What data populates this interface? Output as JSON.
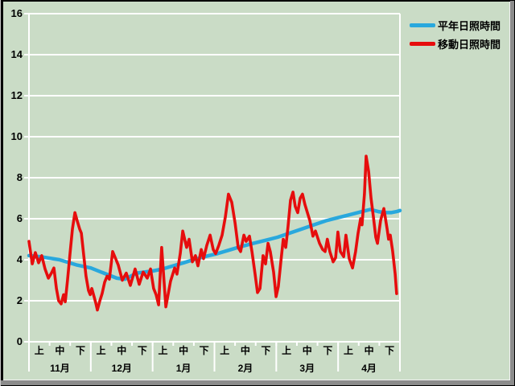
{
  "colors": {
    "background": "#cadcc6",
    "grid": "#ffffff",
    "text": "#000000",
    "frame_dark": "#000000",
    "frame_gray": "#8c8c8c",
    "series_normal": "#29a8dd",
    "series_moving": "#e60d0d"
  },
  "legend": {
    "position": "top-right"
  },
  "chart_data": {
    "type": "line",
    "title": "",
    "xlabel": "",
    "ylabel": "",
    "ylim": [
      0,
      16
    ],
    "yticks": [
      0,
      2,
      4,
      6,
      8,
      10,
      12,
      14,
      16
    ],
    "grid": true,
    "x_axis": {
      "months": [
        "11月",
        "12月",
        "1月",
        "2月",
        "3月",
        "4月"
      ],
      "periods": [
        "上",
        "中",
        "下"
      ],
      "days_total": 180
    },
    "series": [
      {
        "name": "平年日照時間",
        "color": "#29a8dd",
        "points": [
          [
            0,
            4.2
          ],
          [
            5.5,
            4.15
          ],
          [
            14.8,
            4.0
          ],
          [
            23,
            3.75
          ],
          [
            30,
            3.6
          ],
          [
            35,
            3.4
          ],
          [
            42.6,
            3.1
          ],
          [
            46.5,
            3.05
          ],
          [
            52.3,
            3.35
          ],
          [
            60,
            3.45
          ],
          [
            64.8,
            3.55
          ],
          [
            69.9,
            3.7
          ],
          [
            75,
            3.85
          ],
          [
            79.7,
            4.0
          ],
          [
            85.1,
            4.15
          ],
          [
            91.4,
            4.3
          ],
          [
            98,
            4.5
          ],
          [
            103.1,
            4.65
          ],
          [
            108.9,
            4.8
          ],
          [
            114.8,
            4.95
          ],
          [
            120.6,
            5.1
          ],
          [
            126.5,
            5.3
          ],
          [
            132.4,
            5.5
          ],
          [
            138.2,
            5.7
          ],
          [
            144.1,
            5.9
          ],
          [
            149.9,
            6.05
          ],
          [
            155.8,
            6.2
          ],
          [
            161.6,
            6.35
          ],
          [
            165.6,
            6.45
          ],
          [
            169.5,
            6.35
          ],
          [
            172.6,
            6.3
          ],
          [
            175.7,
            6.3
          ],
          [
            178.4,
            6.35
          ],
          [
            180,
            6.4
          ]
        ]
      },
      {
        "name": "移動日照時間",
        "color": "#e60d0d",
        "points": [
          [
            0,
            4.9
          ],
          [
            1.6,
            3.8
          ],
          [
            3.1,
            4.35
          ],
          [
            4.7,
            3.85
          ],
          [
            6.2,
            4.2
          ],
          [
            7.8,
            3.55
          ],
          [
            9.4,
            3.1
          ],
          [
            10.9,
            3.35
          ],
          [
            12.1,
            3.6
          ],
          [
            13.3,
            2.6
          ],
          [
            14.4,
            2.0
          ],
          [
            15.6,
            1.85
          ],
          [
            16.8,
            2.3
          ],
          [
            17.6,
            1.95
          ],
          [
            18.7,
            3.0
          ],
          [
            19.9,
            4.3
          ],
          [
            21.1,
            5.5
          ],
          [
            22.3,
            6.3
          ],
          [
            23.4,
            5.9
          ],
          [
            24.6,
            5.5
          ],
          [
            25.4,
            5.3
          ],
          [
            26.6,
            4.2
          ],
          [
            27.7,
            3.2
          ],
          [
            28.9,
            2.5
          ],
          [
            29.7,
            2.3
          ],
          [
            30.5,
            2.6
          ],
          [
            31.6,
            2.2
          ],
          [
            32.4,
            1.9
          ],
          [
            33.2,
            1.55
          ],
          [
            34.4,
            2.0
          ],
          [
            35.5,
            2.35
          ],
          [
            36.7,
            2.9
          ],
          [
            37.9,
            3.2
          ],
          [
            39.0,
            3.05
          ],
          [
            39.8,
            3.7
          ],
          [
            40.6,
            4.4
          ],
          [
            43.3,
            3.75
          ],
          [
            45.3,
            3.0
          ],
          [
            47.2,
            3.35
          ],
          [
            49.2,
            2.75
          ],
          [
            51.5,
            3.55
          ],
          [
            53.5,
            2.8
          ],
          [
            55.4,
            3.4
          ],
          [
            57.4,
            3.1
          ],
          [
            59.0,
            3.55
          ],
          [
            60.5,
            2.6
          ],
          [
            61.7,
            2.3
          ],
          [
            62.9,
            1.8
          ],
          [
            64.4,
            4.6
          ],
          [
            66.4,
            1.7
          ],
          [
            68.7,
            2.95
          ],
          [
            70.7,
            3.6
          ],
          [
            71.8,
            3.3
          ],
          [
            73.4,
            4.3
          ],
          [
            74.6,
            5.4
          ],
          [
            76.5,
            4.6
          ],
          [
            77.7,
            5.0
          ],
          [
            79.3,
            3.9
          ],
          [
            80.8,
            4.2
          ],
          [
            82.0,
            3.7
          ],
          [
            83.6,
            4.5
          ],
          [
            84.7,
            4.05
          ],
          [
            86.3,
            4.7
          ],
          [
            87.9,
            5.2
          ],
          [
            89.4,
            4.5
          ],
          [
            90.6,
            4.3
          ],
          [
            92.1,
            4.7
          ],
          [
            93.7,
            5.2
          ],
          [
            95.3,
            6.1
          ],
          [
            96.8,
            7.2
          ],
          [
            98.4,
            6.8
          ],
          [
            100.0,
            5.8
          ],
          [
            101.5,
            4.6
          ],
          [
            102.7,
            4.4
          ],
          [
            104.3,
            5.2
          ],
          [
            105.4,
            4.9
          ],
          [
            107.0,
            5.15
          ],
          [
            108.2,
            4.4
          ],
          [
            109.7,
            3.3
          ],
          [
            110.9,
            2.4
          ],
          [
            112.1,
            2.6
          ],
          [
            113.6,
            4.2
          ],
          [
            114.8,
            3.8
          ],
          [
            116.0,
            4.8
          ],
          [
            117.1,
            4.4
          ],
          [
            118.7,
            3.4
          ],
          [
            119.9,
            2.2
          ],
          [
            121.0,
            2.7
          ],
          [
            122.2,
            3.9
          ],
          [
            123.4,
            5.0
          ],
          [
            124.6,
            4.6
          ],
          [
            125.7,
            5.6
          ],
          [
            126.9,
            6.9
          ],
          [
            128.1,
            7.3
          ],
          [
            129.2,
            6.6
          ],
          [
            130.4,
            6.3
          ],
          [
            131.6,
            7.0
          ],
          [
            132.7,
            7.2
          ],
          [
            133.9,
            6.7
          ],
          [
            135.1,
            6.3
          ],
          [
            136.3,
            5.9
          ],
          [
            137.8,
            5.15
          ],
          [
            139.0,
            5.4
          ],
          [
            141.0,
            4.8
          ],
          [
            142.5,
            4.5
          ],
          [
            143.7,
            4.4
          ],
          [
            144.8,
            5.0
          ],
          [
            146.0,
            4.4
          ],
          [
            147.6,
            3.9
          ],
          [
            148.8,
            4.1
          ],
          [
            149.9,
            5.35
          ],
          [
            151.1,
            4.4
          ],
          [
            152.7,
            4.15
          ],
          [
            153.8,
            5.2
          ],
          [
            155.4,
            4.05
          ],
          [
            157.0,
            3.6
          ],
          [
            158.5,
            4.4
          ],
          [
            159.7,
            5.3
          ],
          [
            160.9,
            6.0
          ],
          [
            161.6,
            5.7
          ],
          [
            162.8,
            7.2
          ],
          [
            163.6,
            9.05
          ],
          [
            164.8,
            8.3
          ],
          [
            166.0,
            7.0
          ],
          [
            167.1,
            6.1
          ],
          [
            168.3,
            5.1
          ],
          [
            169.1,
            4.8
          ],
          [
            170.6,
            5.9
          ],
          [
            172.2,
            6.5
          ],
          [
            173.8,
            5.5
          ],
          [
            174.5,
            5.0
          ],
          [
            175.3,
            5.2
          ],
          [
            176.5,
            4.4
          ],
          [
            177.7,
            3.3
          ],
          [
            178.4,
            2.35
          ]
        ]
      }
    ]
  }
}
